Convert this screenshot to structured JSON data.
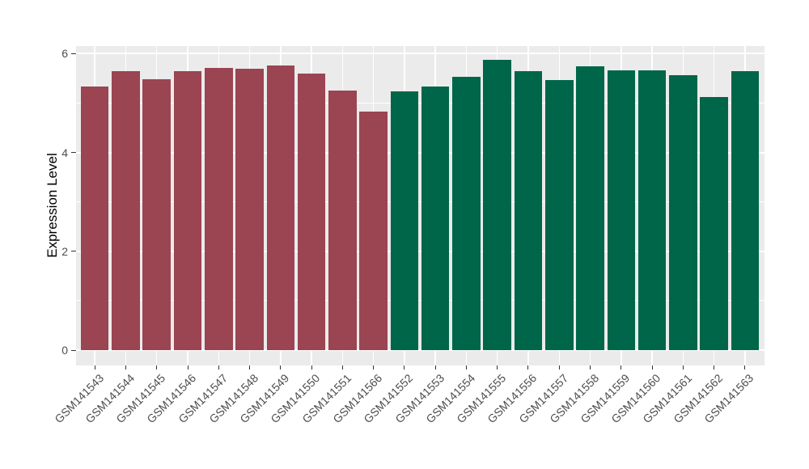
{
  "chart_data": {
    "type": "bar",
    "title": "",
    "xlabel": "",
    "ylabel": "Expression Level",
    "ylim": [
      0,
      6.16
    ],
    "yticks": [
      {
        "value": 0,
        "label": "0"
      },
      {
        "value": 2,
        "label": "2"
      },
      {
        "value": 4,
        "label": "4"
      },
      {
        "value": 6,
        "label": "6"
      }
    ],
    "minor_gridline_values": [
      1,
      3,
      5
    ],
    "grid": "white major and minor horizontal gridlines plus major vertical gridlines on gray panel",
    "legend_position": "none",
    "colors": {
      "panel_background": "#EBEBEB",
      "gridline": "#FFFFFF",
      "axis_text": "#4D4D4D",
      "tick_mark": "#333333",
      "group_left": "#9B4452",
      "group_right": "#006649"
    },
    "series": [
      {
        "name": "left-group-maroon",
        "color": "#9B4452",
        "categories": [
          "GSM141543",
          "GSM141544",
          "GSM141545",
          "GSM141546",
          "GSM141547",
          "GSM141548",
          "GSM141549",
          "GSM141550",
          "GSM141551",
          "GSM141566"
        ],
        "values": [
          5.34,
          5.65,
          5.48,
          5.64,
          5.71,
          5.7,
          5.76,
          5.6,
          5.25,
          4.83
        ]
      },
      {
        "name": "right-group-green",
        "color": "#006649",
        "categories": [
          "GSM141552",
          "GSM141553",
          "GSM141554",
          "GSM141555",
          "GSM141556",
          "GSM141557",
          "GSM141558",
          "GSM141559",
          "GSM141560",
          "GSM141561",
          "GSM141562",
          "GSM141563"
        ],
        "values": [
          5.24,
          5.33,
          5.54,
          5.87,
          5.64,
          5.47,
          5.74,
          5.67,
          5.67,
          5.56,
          5.13,
          5.65
        ]
      }
    ]
  }
}
